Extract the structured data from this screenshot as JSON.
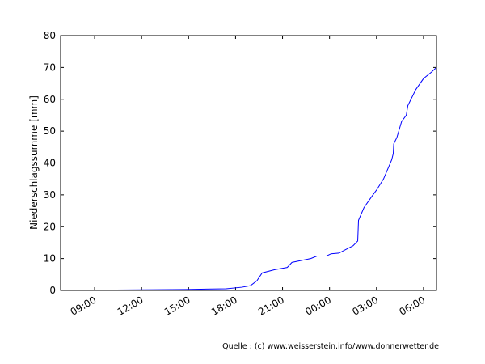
{
  "chart_data": {
    "type": "line",
    "ylabel": "Niederschlagssumme [mm]",
    "source": "Quelle : (c) www.weisserstein.info/www.donnerwetter.de",
    "x": [
      6.83,
      14.8,
      17.4,
      18.4,
      18.95,
      19.36,
      19.7,
      20.5,
      21.3,
      21.6,
      22.1,
      22.8,
      23.2,
      23.8,
      24.1,
      24.6,
      25.1,
      25.5,
      25.8,
      25.85,
      26.2,
      26.7,
      27.0,
      27.45,
      27.97,
      28.07,
      28.1,
      28.3,
      28.6,
      28.9,
      29.0,
      29.5,
      30.0,
      30.5,
      30.83
    ],
    "series": [
      {
        "name": "Niederschlagssumme",
        "color": "#0000ff",
        "values": [
          0,
          0.3,
          0.5,
          1.0,
          1.5,
          3,
          5.5,
          6.5,
          7.2,
          8.8,
          9.3,
          10,
          10.8,
          10.8,
          11.5,
          11.7,
          13,
          14,
          15.5,
          22,
          26,
          29.5,
          31.5,
          35,
          41,
          43,
          46,
          48,
          53,
          55,
          58,
          63,
          66.5,
          68.5,
          70
        ]
      }
    ],
    "xlim": [
      6.83,
      30.83
    ],
    "xticks": [
      {
        "value": 9,
        "label": "09:00"
      },
      {
        "value": 12,
        "label": "12:00"
      },
      {
        "value": 15,
        "label": "15:00"
      },
      {
        "value": 18,
        "label": "18:00"
      },
      {
        "value": 21,
        "label": "21:00"
      },
      {
        "value": 24,
        "label": "00:00"
      },
      {
        "value": 27,
        "label": "03:00"
      },
      {
        "value": 30,
        "label": "06:00"
      }
    ],
    "ylim": [
      0,
      80
    ],
    "yticks": [
      0,
      10,
      20,
      30,
      40,
      50,
      60,
      70,
      80
    ]
  }
}
